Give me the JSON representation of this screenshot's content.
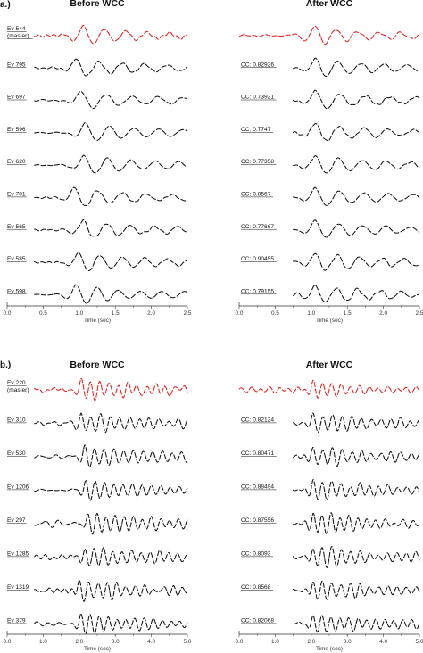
{
  "chart_data": [
    {
      "type": "line",
      "panel_label": "a.)",
      "title": "Before WCC",
      "xlabel": "Time (sec)",
      "xlim": [
        0,
        2.5
      ],
      "xticks": [
        "0.0",
        "0.5",
        "1.0",
        "1.5",
        "2.0",
        "2.5"
      ],
      "series": [
        {
          "name": "Ev 544 (master)",
          "label_lines": [
            "Ev 544",
            "(master)"
          ],
          "color": "#e02020",
          "onset": 0.55,
          "peak": 1.05,
          "period": 0.3,
          "decay": 0.45,
          "noise": 0.06
        },
        {
          "name": "Ev 795",
          "label_lines": [
            "Ev 795"
          ],
          "color": "#111111",
          "onset": 0.68,
          "peak": 0.95,
          "period": 0.32,
          "decay": 0.55,
          "noise": 0.04
        },
        {
          "name": "Ev 697",
          "label_lines": [
            "Ev 697"
          ],
          "color": "#111111",
          "onset": 0.7,
          "peak": 1.02,
          "period": 0.36,
          "decay": 0.5,
          "noise": 0.04
        },
        {
          "name": "Ev 596",
          "label_lines": [
            "Ev 596"
          ],
          "color": "#111111",
          "onset": 0.7,
          "peak": 1.08,
          "period": 0.34,
          "decay": 0.55,
          "noise": 0.04
        },
        {
          "name": "Ev 620",
          "label_lines": [
            "Ev 620"
          ],
          "color": "#111111",
          "onset": 0.72,
          "peak": 1.06,
          "period": 0.33,
          "decay": 0.55,
          "noise": 0.04
        },
        {
          "name": "Ev 701",
          "label_lines": [
            "Ev 701"
          ],
          "color": "#111111",
          "onset": 0.62,
          "peak": 0.92,
          "period": 0.34,
          "decay": 0.55,
          "noise": 0.04
        },
        {
          "name": "Ev 565",
          "label_lines": [
            "Ev 565"
          ],
          "color": "#111111",
          "onset": 0.7,
          "peak": 1.05,
          "period": 0.33,
          "decay": 0.5,
          "noise": 0.04
        },
        {
          "name": "Ev 585",
          "label_lines": [
            "Ev 585"
          ],
          "color": "#111111",
          "onset": 0.65,
          "peak": 0.98,
          "period": 0.31,
          "decay": 0.6,
          "noise": 0.05
        },
        {
          "name": "Ev 598",
          "label_lines": [
            "Ev 598"
          ],
          "color": "#111111",
          "onset": 0.6,
          "peak": 0.95,
          "period": 0.3,
          "decay": 0.55,
          "noise": 0.05
        }
      ]
    },
    {
      "type": "line",
      "title": "After WCC",
      "xlabel": "Time (sec)",
      "xlim": [
        0,
        2.5
      ],
      "xticks": [
        "0.0",
        "0.5",
        "1.0",
        "1.5",
        "2.0",
        "2.5"
      ],
      "series": [
        {
          "name": "master",
          "label_lines": [],
          "color": "#e02020",
          "onset": 0.55,
          "peak": 1.05,
          "period": 0.3,
          "decay": 0.45,
          "noise": 0.06
        },
        {
          "name": "CC: 0.82926",
          "label_lines": [
            "CC: 0.82926"
          ],
          "color": "#111111",
          "onset": 0.7,
          "peak": 1.05,
          "period": 0.32,
          "decay": 0.55,
          "noise": 0.04
        },
        {
          "name": "CC: 0.73921",
          "label_lines": [
            "CC: 0.73921"
          ],
          "color": "#111111",
          "onset": 0.7,
          "peak": 1.05,
          "period": 0.35,
          "decay": 0.5,
          "noise": 0.04
        },
        {
          "name": "CC: 0.7747",
          "label_lines": [
            "CC: 0.7747"
          ],
          "color": "#111111",
          "onset": 0.7,
          "peak": 1.05,
          "period": 0.34,
          "decay": 0.55,
          "noise": 0.04
        },
        {
          "name": "CC: 0.77358",
          "label_lines": [
            "CC: 0.77358"
          ],
          "color": "#111111",
          "onset": 0.7,
          "peak": 1.05,
          "period": 0.33,
          "decay": 0.55,
          "noise": 0.04
        },
        {
          "name": "CC: 0.8567",
          "label_lines": [
            "CC: 0.8567"
          ],
          "color": "#111111",
          "onset": 0.7,
          "peak": 1.05,
          "period": 0.34,
          "decay": 0.55,
          "noise": 0.04
        },
        {
          "name": "CC: 0.77667",
          "label_lines": [
            "CC: 0.77667"
          ],
          "color": "#111111",
          "onset": 0.7,
          "peak": 1.05,
          "period": 0.33,
          "decay": 0.5,
          "noise": 0.04
        },
        {
          "name": "CC: 0.90455",
          "label_lines": [
            "CC: 0.90455"
          ],
          "color": "#111111",
          "onset": 0.7,
          "peak": 1.05,
          "period": 0.31,
          "decay": 0.6,
          "noise": 0.05
        },
        {
          "name": "CC: 0.79155",
          "label_lines": [
            "CC: 0.79155"
          ],
          "color": "#111111",
          "onset": 0.7,
          "peak": 1.05,
          "period": 0.3,
          "decay": 0.55,
          "noise": 0.05
        }
      ]
    },
    {
      "type": "line",
      "panel_label": "b.)",
      "title": "Before WCC",
      "xlabel": "Time (sec)",
      "xlim": [
        0,
        5.0
      ],
      "xticks": [
        "0.0",
        "1.0",
        "2.0",
        "3.0",
        "4.0",
        "5.0"
      ],
      "series": [
        {
          "name": "Ev 220 (master)",
          "label_lines": [
            "Ev 220",
            "(master)"
          ],
          "color": "#e02020",
          "onset": 1.55,
          "peak": 2.05,
          "period": 0.26,
          "decay": 0.55,
          "noise": 0.1
        },
        {
          "name": "Ev 310",
          "label_lines": [
            "Ev 310"
          ],
          "color": "#111111",
          "onset": 1.65,
          "peak": 2.05,
          "period": 0.27,
          "decay": 0.55,
          "noise": 0.09
        },
        {
          "name": "Ev 530",
          "label_lines": [
            "Ev 530"
          ],
          "color": "#111111",
          "onset": 1.75,
          "peak": 2.15,
          "period": 0.27,
          "decay": 0.5,
          "noise": 0.09
        },
        {
          "name": "Ev 1206",
          "label_lines": [
            "Ev 1206"
          ],
          "color": "#111111",
          "onset": 1.8,
          "peak": 2.18,
          "period": 0.26,
          "decay": 0.55,
          "noise": 0.09
        },
        {
          "name": "Ev 297",
          "label_lines": [
            "Ev 297"
          ],
          "color": "#111111",
          "onset": 1.85,
          "peak": 2.25,
          "period": 0.25,
          "decay": 0.55,
          "noise": 0.12
        },
        {
          "name": "Ev 1285",
          "label_lines": [
            "Ev 1285"
          ],
          "color": "#111111",
          "onset": 1.75,
          "peak": 2.15,
          "period": 0.26,
          "decay": 0.55,
          "noise": 0.1
        },
        {
          "name": "Ev 1319",
          "label_lines": [
            "Ev 1319"
          ],
          "color": "#111111",
          "onset": 1.6,
          "peak": 2.0,
          "period": 0.26,
          "decay": 0.55,
          "noise": 0.09
        },
        {
          "name": "Ev 379",
          "label_lines": [
            "Ev 379"
          ],
          "color": "#111111",
          "onset": 1.65,
          "peak": 2.05,
          "period": 0.25,
          "decay": 0.55,
          "noise": 0.1
        }
      ]
    },
    {
      "type": "line",
      "title": "After WCC",
      "xlabel": "Time (sec)",
      "xlim": [
        0,
        5.0
      ],
      "xticks": [
        "0.0",
        "1.0",
        "2.0",
        "3.0",
        "4.0",
        "5.0"
      ],
      "series": [
        {
          "name": "master",
          "label_lines": [],
          "color": "#e02020",
          "onset": 1.55,
          "peak": 2.05,
          "period": 0.26,
          "decay": 0.55,
          "noise": 0.1
        },
        {
          "name": "CC: 0.82124",
          "label_lines": [
            "CC: 0.82124"
          ],
          "color": "#111111",
          "onset": 1.65,
          "peak": 2.05,
          "period": 0.27,
          "decay": 0.55,
          "noise": 0.09
        },
        {
          "name": "CC: 0.80471",
          "label_lines": [
            "CC: 0.80471"
          ],
          "color": "#111111",
          "onset": 1.65,
          "peak": 2.05,
          "period": 0.27,
          "decay": 0.5,
          "noise": 0.09
        },
        {
          "name": "CC: 0.88494",
          "label_lines": [
            "CC: 0.88494"
          ],
          "color": "#111111",
          "onset": 1.65,
          "peak": 2.05,
          "period": 0.26,
          "decay": 0.55,
          "noise": 0.09
        },
        {
          "name": "CC: 0.87556",
          "label_lines": [
            "CC: 0.87556"
          ],
          "color": "#111111",
          "onset": 1.65,
          "peak": 2.05,
          "period": 0.25,
          "decay": 0.55,
          "noise": 0.12
        },
        {
          "name": "CC: 0.8093",
          "label_lines": [
            "CC: 0.8093"
          ],
          "color": "#111111",
          "onset": 1.65,
          "peak": 2.05,
          "period": 0.26,
          "decay": 0.55,
          "noise": 0.1
        },
        {
          "name": "CC: 0.8568",
          "label_lines": [
            "CC: 0.8568"
          ],
          "color": "#111111",
          "onset": 1.65,
          "peak": 2.05,
          "period": 0.26,
          "decay": 0.55,
          "noise": 0.09
        },
        {
          "name": "CC: 0.82068",
          "label_lines": [
            "CC: 0.82068"
          ],
          "color": "#111111",
          "onset": 1.65,
          "peak": 2.05,
          "period": 0.25,
          "decay": 0.55,
          "noise": 0.1
        }
      ]
    }
  ]
}
